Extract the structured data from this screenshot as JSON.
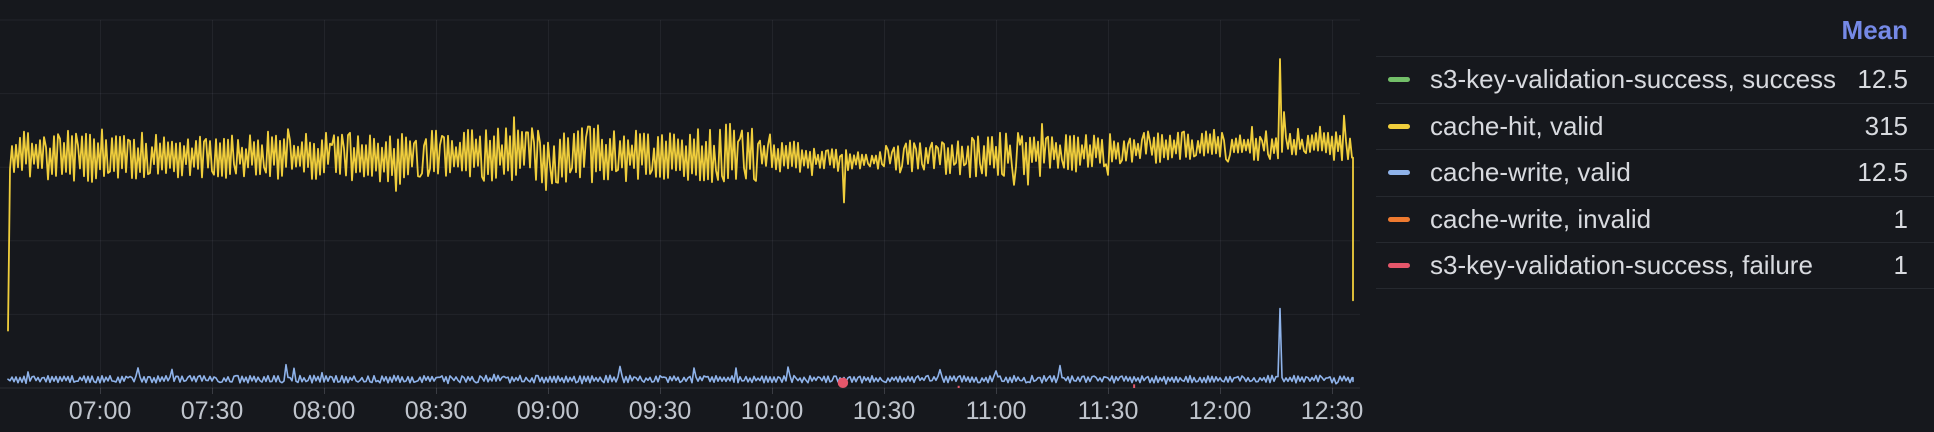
{
  "colors": {
    "background": "#16181d",
    "grid": "rgba(204,204,220,0.07)",
    "baseline": "rgba(204,204,220,0.12)",
    "tick": "rgba(204,204,220,0.20)",
    "axis_text": "#BFC4CC",
    "legend_text": "#D8DADF",
    "divider": "#26292f",
    "mean_header_color": "#7589E6"
  },
  "legend": {
    "mean_header": "Mean",
    "rows": [
      {
        "label": "s3-key-validation-success, success",
        "color": "#73BF69",
        "mean": "12.5"
      },
      {
        "label": "cache-hit, valid",
        "color": "#F0CE3C",
        "mean": "315"
      },
      {
        "label": "cache-write, valid",
        "color": "#8FB3EA",
        "mean": "12.5"
      },
      {
        "label": "cache-write, invalid",
        "color": "#EE7A30",
        "mean": "1"
      },
      {
        "label": "s3-key-validation-success, failure",
        "color": "#E5566A",
        "mean": "1"
      }
    ]
  },
  "chart_data": {
    "type": "line",
    "title": "",
    "xlabel": "",
    "ylabel": "",
    "x_ticks": [
      "07:00",
      "07:30",
      "08:00",
      "08:30",
      "09:00",
      "09:30",
      "10:00",
      "10:30",
      "11:00",
      "11:30",
      "12:00",
      "12:30"
    ],
    "x_start": "06:35",
    "x_end": "12:35",
    "ylim": [
      0,
      500
    ],
    "y_gridline_values": [
      0,
      100,
      200,
      300,
      400,
      500
    ],
    "grid": true,
    "legend_position": "right",
    "series": [
      {
        "name": "s3-key-validation-success, success",
        "color": "#73BF69",
        "mean": 12.5,
        "visible_as": "hidden-behind-cache-write-valid"
      },
      {
        "name": "cache-hit, valid",
        "color": "#F0CE3C",
        "mean": 315,
        "visible_as": "line",
        "start_value": 78,
        "end_value": 119,
        "envelope": [
          {
            "t": "06:35",
            "mean": 316,
            "amp": 30
          },
          {
            "t": "07:02",
            "mean": 314,
            "amp": 38
          },
          {
            "t": "07:15",
            "mean": 315,
            "amp": 30
          },
          {
            "t": "07:30",
            "mean": 315,
            "amp": 30
          },
          {
            "t": "08:00",
            "mean": 314,
            "amp": 32
          },
          {
            "t": "08:30",
            "mean": 315,
            "amp": 36
          },
          {
            "t": "09:00",
            "mean": 316,
            "amp": 38
          },
          {
            "t": "09:15",
            "mean": 317,
            "amp": 42
          },
          {
            "t": "09:30",
            "mean": 314,
            "amp": 30
          },
          {
            "t": "09:50",
            "mean": 316,
            "amp": 44
          },
          {
            "t": "10:00",
            "mean": 316,
            "amp": 30
          },
          {
            "t": "10:12",
            "mean": 310,
            "amp": 16
          },
          {
            "t": "10:26",
            "mean": 310,
            "amp": 14
          },
          {
            "t": "10:40",
            "mean": 315,
            "amp": 26
          },
          {
            "t": "11:00",
            "mean": 316,
            "amp": 32
          },
          {
            "t": "11:15",
            "mean": 320,
            "amp": 28
          },
          {
            "t": "11:30",
            "mean": 322,
            "amp": 24
          },
          {
            "t": "11:45",
            "mean": 327,
            "amp": 20
          },
          {
            "t": "12:00",
            "mean": 329,
            "amp": 24
          },
          {
            "t": "12:16",
            "mean": 330,
            "amp": 18
          },
          {
            "t": "12:25",
            "mean": 331,
            "amp": 16
          },
          {
            "t": "12:34",
            "mean": 328,
            "amp": 22
          }
        ],
        "spikes": [
          {
            "t": "10:19",
            "value": 252
          },
          {
            "t": "12:16",
            "value": 447
          },
          {
            "t": "12:17",
            "value": 375
          },
          {
            "t": "12:33",
            "value": 370
          }
        ]
      },
      {
        "name": "cache-write, valid",
        "color": "#8FB3EA",
        "mean": 12.5,
        "visible_as": "line",
        "start_value": 12,
        "end_value": 9,
        "envelope": [
          {
            "t": "06:35",
            "mean": 12,
            "amp": 5
          },
          {
            "t": "12:34",
            "mean": 12,
            "amp": 5
          }
        ],
        "spikes": [
          {
            "t": "12:16",
            "value": 108
          }
        ]
      },
      {
        "name": "cache-write, invalid",
        "color": "#EE7A30",
        "mean": 1,
        "visible_as": "hidden-at-baseline"
      },
      {
        "name": "s3-key-validation-success, failure",
        "color": "#E5566A",
        "mean": 1,
        "visible_as": "points",
        "markers": [
          {
            "t": "10:19",
            "value": 7,
            "marker": "circle"
          },
          {
            "t": "10:50",
            "value": 3,
            "marker": "dash"
          },
          {
            "t": "11:37",
            "value": 5,
            "marker": "dash"
          }
        ]
      }
    ]
  }
}
